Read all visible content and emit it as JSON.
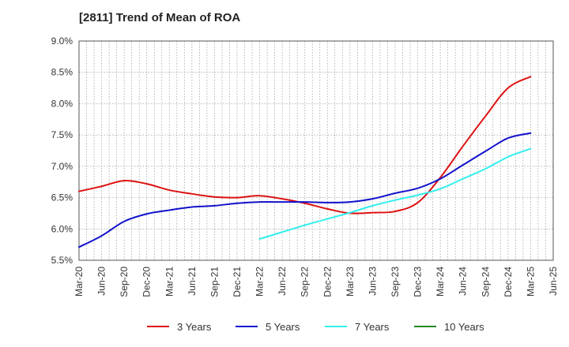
{
  "chart_data": {
    "type": "line",
    "title": "[2811]  Trend of Mean of ROA",
    "xlabel": "",
    "ylabel": "",
    "y_tick_labels": [
      "5.5%",
      "6.0%",
      "6.5%",
      "7.0%",
      "7.5%",
      "8.0%",
      "8.5%",
      "9.0%"
    ],
    "ylim": [
      5.5,
      9.0
    ],
    "x_tick_labels": [
      "Mar-20",
      "Jun-20",
      "Sep-20",
      "Dec-20",
      "Mar-21",
      "Jun-21",
      "Sep-21",
      "Dec-21",
      "Mar-22",
      "Jun-22",
      "Sep-22",
      "Dec-22",
      "Mar-23",
      "Jun-23",
      "Sep-23",
      "Dec-23",
      "Mar-24",
      "Jun-24",
      "Sep-24",
      "Dec-24",
      "Mar-25",
      "Jun-25"
    ],
    "grid": true,
    "legend_position": "bottom",
    "series": [
      {
        "name": "3 Years",
        "color": "#dd1111",
        "x_index": [
          0,
          1,
          2,
          3,
          4,
          5,
          6,
          7,
          8,
          9,
          10,
          11,
          12,
          13,
          14,
          15,
          16,
          17,
          18,
          19,
          20
        ],
        "values": [
          6.6,
          6.68,
          6.77,
          6.72,
          6.62,
          6.56,
          6.51,
          6.5,
          6.53,
          6.48,
          6.41,
          6.32,
          6.25,
          6.26,
          6.28,
          6.42,
          6.82,
          7.32,
          7.8,
          8.25,
          8.43
        ]
      },
      {
        "name": "5 Years",
        "color": "#1111cc",
        "x_index": [
          0,
          1,
          2,
          3,
          4,
          5,
          6,
          7,
          8,
          9,
          10,
          11,
          12,
          13,
          14,
          15,
          16,
          17,
          18,
          19,
          20
        ],
        "values": [
          5.71,
          5.89,
          6.12,
          6.24,
          6.3,
          6.35,
          6.37,
          6.41,
          6.43,
          6.43,
          6.43,
          6.42,
          6.43,
          6.48,
          6.57,
          6.65,
          6.8,
          7.02,
          7.24,
          7.45,
          7.53
        ]
      },
      {
        "name": "7 Years",
        "color": "#33eeee",
        "x_index": [
          8,
          9,
          10,
          11,
          12,
          13,
          14,
          15,
          16,
          17,
          18,
          19,
          20
        ],
        "values": [
          5.84,
          5.95,
          6.06,
          6.16,
          6.26,
          6.37,
          6.46,
          6.54,
          6.64,
          6.8,
          6.96,
          7.15,
          7.28
        ]
      },
      {
        "name": "10 Years",
        "color": "#228822",
        "x_index": [],
        "values": []
      }
    ]
  }
}
